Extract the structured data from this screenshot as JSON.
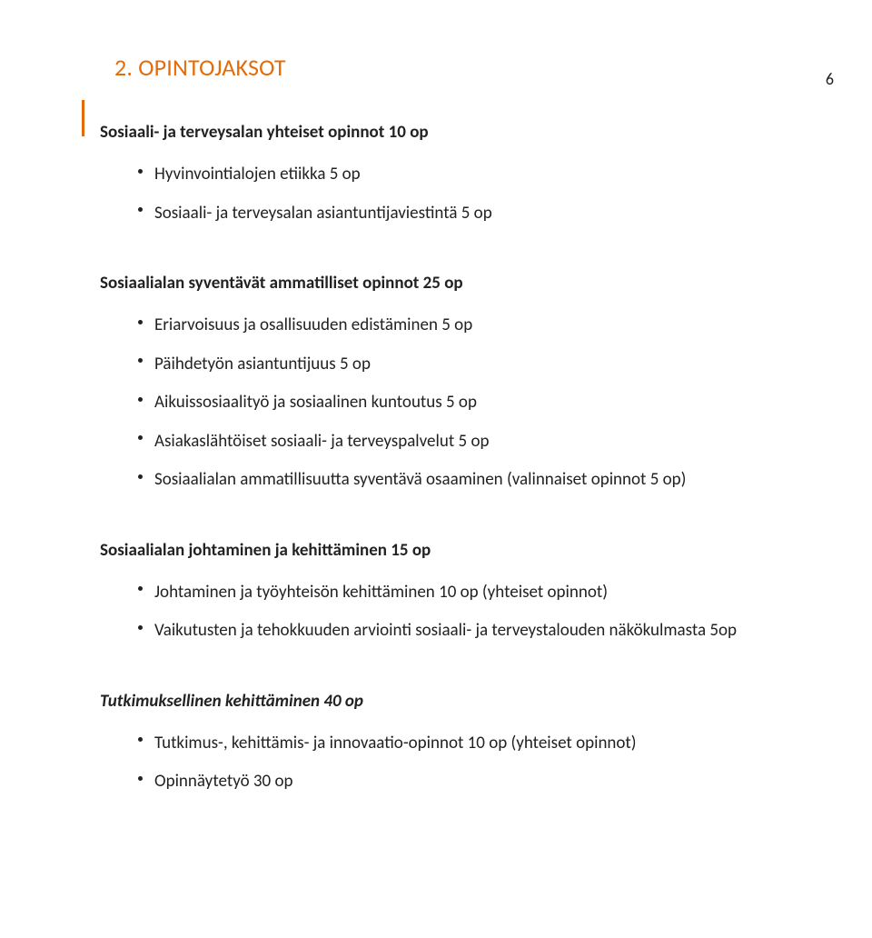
{
  "page_number": "6",
  "heading": "2. OPINTOJAKSOT",
  "accent_color": "#e36c09",
  "text_color": "#222222",
  "background_color": "#ffffff",
  "sections": [
    {
      "title": "Sosiaali- ja terveysalan yhteiset opinnot 10 op",
      "italic": false,
      "items": [
        "Hyvinvointialojen etiikka 5 op",
        "Sosiaali- ja terveysalan asiantuntijaviestintä 5 op"
      ]
    },
    {
      "title": "Sosiaalialan syventävät ammatilliset opinnot 25 op",
      "italic": false,
      "items": [
        "Eriarvoisuus ja osallisuuden edistäminen 5 op",
        "Päihdetyön asiantuntijuus 5 op",
        "Aikuissosiaalityö ja sosiaalinen kuntoutus 5 op",
        "Asiakaslähtöiset sosiaali- ja terveyspalvelut 5 op",
        "Sosiaalialan ammatillisuutta syventävä osaaminen (valinnaiset opinnot 5 op)"
      ]
    },
    {
      "title": "Sosiaalialan johtaminen ja kehittäminen 15 op",
      "italic": false,
      "items": [
        "Johtaminen ja työyhteisön kehittäminen 10 op (yhteiset opinnot)",
        "Vaikutusten ja tehokkuuden arviointi sosiaali- ja terveystalouden näkökulmasta 5op"
      ]
    },
    {
      "title": "Tutkimuksellinen kehittäminen 40 op",
      "italic": true,
      "items": [
        "Tutkimus-, kehittämis- ja innovaatio-opinnot 10 op (yhteiset opinnot)",
        "Opinnäytetyö 30 op"
      ]
    }
  ]
}
